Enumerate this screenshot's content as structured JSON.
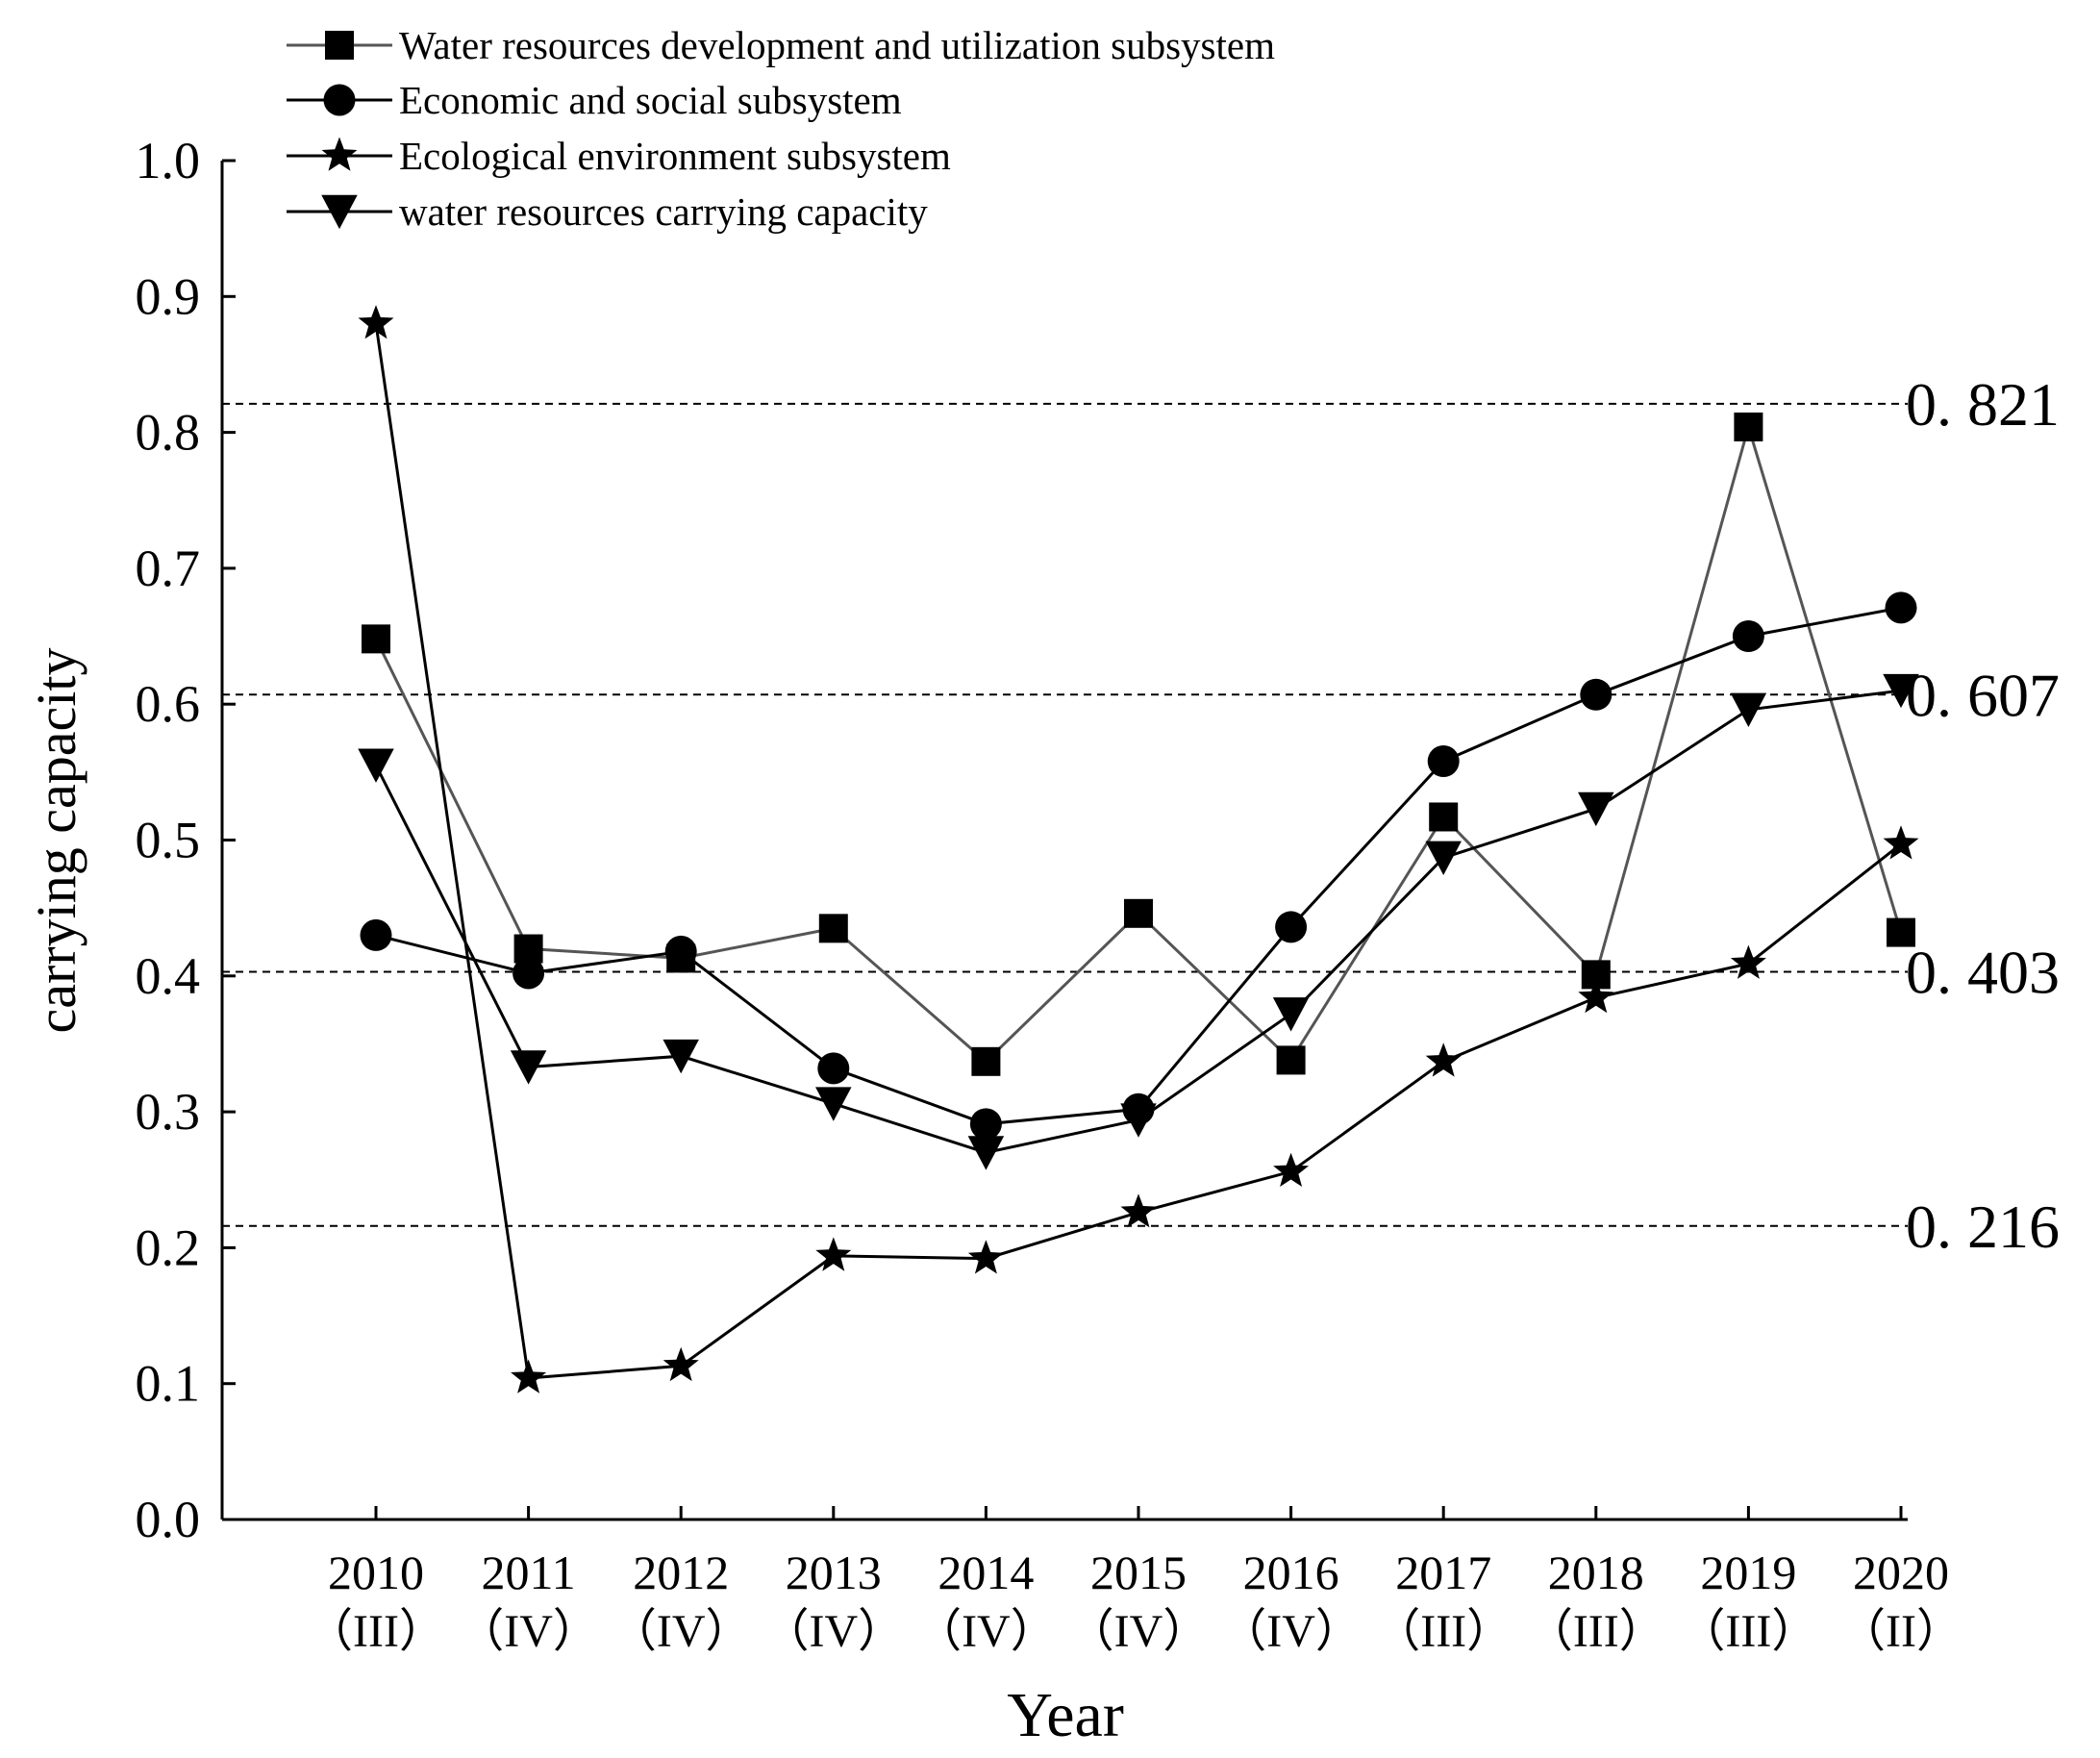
{
  "chart_data": {
    "type": "line",
    "xlabel": "Year",
    "ylabel": "carrying capacity",
    "ylim": [
      0,
      1.0
    ],
    "yticks": [
      "0.0",
      "0.1",
      "0.2",
      "0.3",
      "0.4",
      "0.5",
      "0.6",
      "0.7",
      "0.8",
      "0.9",
      "1.0"
    ],
    "categories": [
      {
        "year": "2010",
        "grade": "（III）"
      },
      {
        "year": "2011",
        "grade": "（IV）"
      },
      {
        "year": "2012",
        "grade": "（IV）"
      },
      {
        "year": "2013",
        "grade": "（IV）"
      },
      {
        "year": "2014",
        "grade": "（IV）"
      },
      {
        "year": "2015",
        "grade": "（IV）"
      },
      {
        "year": "2016",
        "grade": "（IV）"
      },
      {
        "year": "2017",
        "grade": "（III）"
      },
      {
        "year": "2018",
        "grade": "（III）"
      },
      {
        "year": "2019",
        "grade": "（III）"
      },
      {
        "year": "2020",
        "grade": "（II）"
      }
    ],
    "series": [
      {
        "name": "Water resources development and utilization subsystem",
        "marker": "square",
        "color": "#555555",
        "values": [
          0.648,
          0.42,
          0.413,
          0.435,
          0.337,
          0.446,
          0.338,
          0.517,
          0.401,
          0.804,
          0.432
        ]
      },
      {
        "name": "Economic and social subsystem",
        "marker": "circle",
        "color": "#000000",
        "values": [
          0.43,
          0.402,
          0.418,
          0.332,
          0.291,
          0.302,
          0.436,
          0.558,
          0.607,
          0.65,
          0.671
        ]
      },
      {
        "name": "Ecological environment subsystem",
        "marker": "star",
        "color": "#000000",
        "values": [
          0.88,
          0.104,
          0.113,
          0.194,
          0.192,
          0.226,
          0.256,
          0.337,
          0.384,
          0.409,
          0.497
        ]
      },
      {
        "name": "water resources carrying capacity",
        "marker": "triangle-down",
        "color": "#000000",
        "values": [
          0.555,
          0.333,
          0.341,
          0.306,
          0.27,
          0.294,
          0.372,
          0.487,
          0.523,
          0.596,
          0.61
        ]
      }
    ],
    "reference_lines": [
      {
        "value": 0.821,
        "label": "0. 821"
      },
      {
        "value": 0.607,
        "label": "0. 607"
      },
      {
        "value": 0.403,
        "label": "0. 403"
      },
      {
        "value": 0.216,
        "label": "0. 216"
      }
    ],
    "legend_position": "top-left"
  }
}
